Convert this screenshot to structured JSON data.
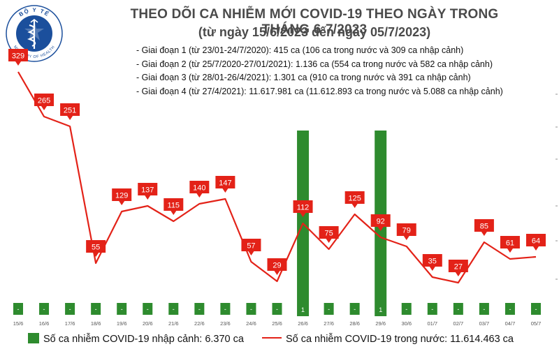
{
  "header": {
    "title": "THEO DÕI CA NHIỄM MỚI COVID-19 THEO NGÀY TRONG THÁNG 6-7/2023",
    "subtitle": "(từ ngày 15/6/2023 đến ngày 05/7/2023)"
  },
  "logo": {
    "top_text": "BỘ Y TẾ",
    "bottom_text": "MINISTRY OF HEALTH",
    "icon": "ministry-of-health-emblem-icon"
  },
  "stages": [
    "- Giai đoạn 1 (từ 23/01-24/7/2020): 415 ca (106 ca trong nước và 309 ca nhập cảnh)",
    "- Giai đoạn 2 (từ 25/7/2020-27/01/2021): 1.136 ca (554 ca trong nước và 582 ca nhập cảnh)",
    "- Giai đoạn 3 (từ 28/01-26/4/2021): 1.301 ca (910 ca trong nước và 391 ca nhập cảnh)",
    "- Giai đoạn 4 (từ 27/4/2021): 11.617.981 ca (11.612.893 ca trong nước và 5.088 ca nhập cảnh)"
  ],
  "chart_data": {
    "type": "bar+line",
    "title": "THEO DÕI CA NHIỄM MỚI COVID-19 THEO NGÀY TRONG THÁNG 6-7/2023",
    "categories": [
      "15/6",
      "16/6",
      "17/6",
      "18/6",
      "19/6",
      "20/6",
      "21/6",
      "22/6",
      "23/6",
      "24/6",
      "25/6",
      "26/6",
      "27/6",
      "28/6",
      "29/6",
      "30/6",
      "01/7",
      "02/7",
      "03/7",
      "04/7",
      "05/7"
    ],
    "series": [
      {
        "name": "Số ca nhiễm COVID-19 trong nước: 11.614.463 ca",
        "type": "line",
        "color": "#e32218",
        "values": [
          329,
          265,
          251,
          55,
          129,
          137,
          115,
          140,
          147,
          57,
          29,
          112,
          75,
          125,
          92,
          79,
          35,
          27,
          85,
          61,
          64
        ],
        "labels": [
          "329",
          "265",
          "251",
          "55",
          "129",
          "137",
          "115",
          "140",
          "147",
          "57",
          "29",
          "112",
          "75",
          "125",
          "92",
          "79",
          "35",
          "27",
          "85",
          "61",
          "64"
        ]
      },
      {
        "name": "Số ca nhiễm COVID-19 nhập cảnh: 6.370 ca",
        "type": "bar",
        "color": "#2e8b2e",
        "values": [
          0,
          0,
          0,
          0,
          0,
          0,
          0,
          0,
          0,
          0,
          0,
          1,
          0,
          0,
          1,
          0,
          0,
          0,
          0,
          0,
          0
        ],
        "labels": [
          "-",
          "-",
          "-",
          "-",
          "-",
          "-",
          "-",
          "-",
          "-",
          "-",
          "-",
          "1",
          "-",
          "-",
          "1",
          "-",
          "-",
          "-",
          "-",
          "-",
          "-"
        ]
      }
    ],
    "xlabel": "",
    "ylabel": "",
    "ylim_line": [
      0,
      350
    ],
    "ylim_bar": [
      0,
      1
    ]
  },
  "legend": {
    "bar_label": "Số ca nhiễm COVID-19 nhập cảnh: 6.370 ca",
    "line_label": "Số ca nhiễm COVID-19 trong nước: 11.614.463 ca"
  }
}
